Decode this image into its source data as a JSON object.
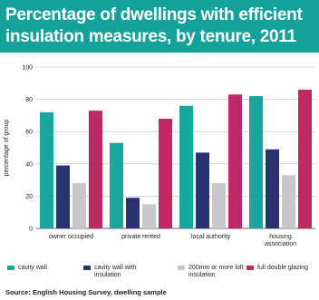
{
  "colors": {
    "title_bg": "#14a19a",
    "cavity_wall": "#1aa69f",
    "cavity_wall_insulation": "#2a3270",
    "loft_insulation": "#c8c8cc",
    "double_glazing": "#c02a62"
  },
  "chart_data": {
    "type": "bar",
    "title": "Percentage of dwellings with efficient insulation measures, by tenure, 2011",
    "ylabel": "percentage of group",
    "xlabel": "",
    "ylim": [
      0,
      100
    ],
    "yticks": [
      "0",
      "20",
      "40",
      "60",
      "80",
      "100"
    ],
    "categories": [
      "owner occupied",
      "private rented",
      "local authority",
      "housing association"
    ],
    "series": [
      {
        "name": "cavity wall",
        "color_key": "cavity_wall",
        "values": [
          72,
          53,
          76,
          82
        ]
      },
      {
        "name": "cavity wall with insulation",
        "color_key": "cavity_wall_insulation",
        "values": [
          39,
          19,
          47,
          49
        ]
      },
      {
        "name": "200mm or more loft insulation",
        "color_key": "loft_insulation",
        "values": [
          28,
          15,
          28,
          33
        ]
      },
      {
        "name": "full double glazing",
        "color_key": "double_glazing",
        "values": [
          73,
          68,
          83,
          86
        ]
      }
    ],
    "grid": true,
    "legend_position": "bottom"
  },
  "title_text": "Percentage of dwellings with efficient insulation measures, by tenure, 2011",
  "legend": {
    "items": [
      {
        "label": "cavity wall",
        "color_key": "cavity_wall"
      },
      {
        "label": "cavity wall with insulation",
        "color_key": "cavity_wall_insulation"
      },
      {
        "label": "200mm or more loft insulation",
        "color_key": "loft_insulation"
      },
      {
        "label": "full double glazing",
        "color_key": "double_glazing"
      }
    ]
  },
  "source": "Source: English Housing Survey, dwelling sample"
}
